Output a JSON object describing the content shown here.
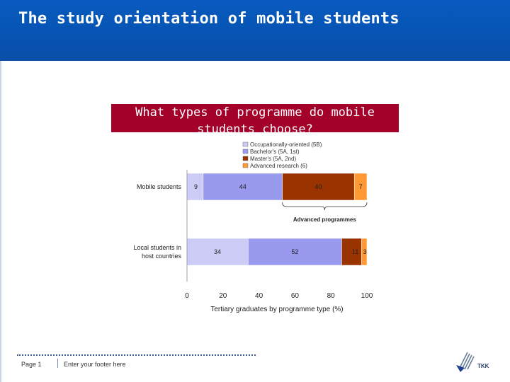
{
  "slide": {
    "title": "The study orientation of mobile students"
  },
  "figure": {
    "banner_line1": "What types of programme do mobile",
    "banner_line2": "students choose?",
    "bracket_label": "Advanced programmes"
  },
  "chart_data": {
    "type": "bar",
    "orientation": "horizontal",
    "stacked": true,
    "categories": [
      "Mobile students",
      "Local students in host countries"
    ],
    "category_lines": [
      [
        "Mobile students"
      ],
      [
        "Local students in",
        "host countries"
      ]
    ],
    "series": [
      {
        "name": "Occupationally-oriented (5B)",
        "values": [
          9,
          34
        ],
        "color": "#ccccf7"
      },
      {
        "name": "Bachelor's (5A, 1st)",
        "values": [
          44,
          52
        ],
        "color": "#9999ee"
      },
      {
        "name": "Master's (5A, 2nd)",
        "values": [
          40,
          11
        ],
        "color": "#993300"
      },
      {
        "name": "Advanced research (6)",
        "values": [
          7,
          3
        ],
        "color": "#ff9933"
      }
    ],
    "xlabel": "Tertiary graduates by programme type (%)",
    "xlim": [
      0,
      100
    ],
    "xticks": [
      "0",
      "20",
      "40",
      "60",
      "80",
      "100"
    ],
    "legend_position": "top"
  },
  "footer": {
    "page": "Page 1",
    "text": "Enter your footer here"
  },
  "colors": {
    "header": "#0554b4",
    "banner": "#a3002a"
  },
  "icons": {
    "logo": "tkk-logo-icon"
  }
}
